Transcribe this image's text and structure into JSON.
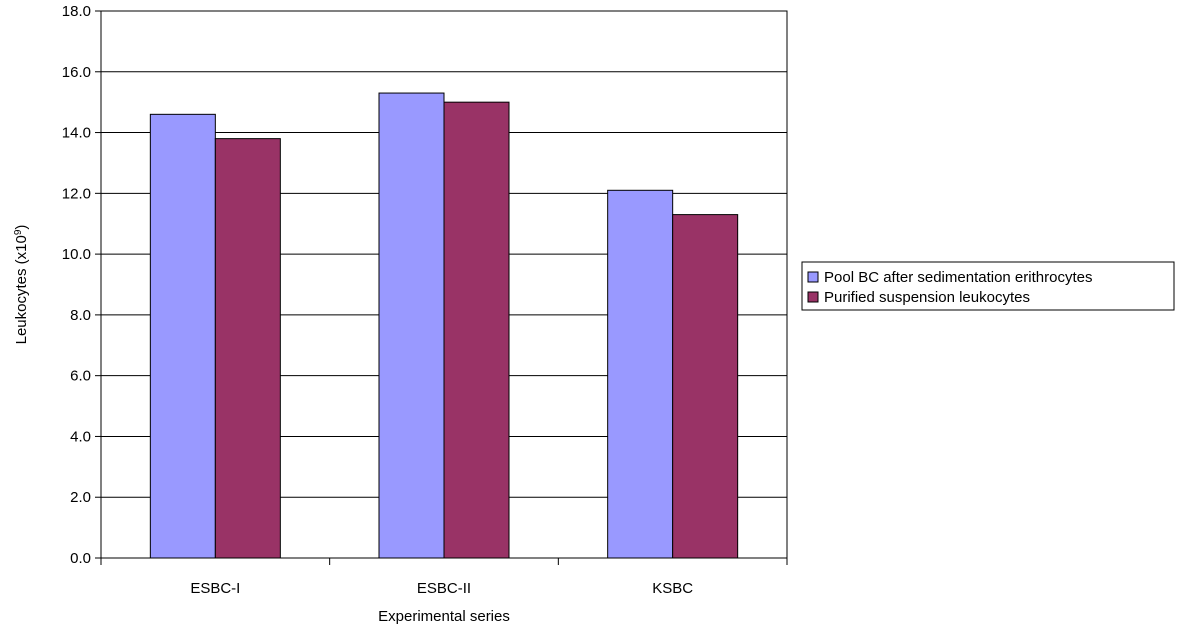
{
  "chart_data": {
    "type": "bar",
    "categories": [
      "ESBC-I",
      "ESBC-II",
      "KSBC"
    ],
    "series": [
      {
        "name": "Pool BC after sedimentation erithrocytes",
        "color": "#9999ff",
        "values": [
          14.6,
          15.3,
          12.1
        ]
      },
      {
        "name": "Purified suspension leukocytes",
        "color": "#993366",
        "values": [
          13.8,
          15.0,
          11.3
        ]
      }
    ],
    "xlabel": "Experimental series",
    "ylabel": "Leukocytes (x10",
    "ylabel_superscript": "9",
    "ylabel_suffix": ")",
    "ylim": [
      0,
      18
    ],
    "ytick_step": 2,
    "ytick_labels": [
      "0.0",
      "2.0",
      "4.0",
      "6.0",
      "8.0",
      "10.0",
      "12.0",
      "14.0",
      "16.0",
      "18.0"
    ],
    "grid": true,
    "legend_position": "right"
  }
}
